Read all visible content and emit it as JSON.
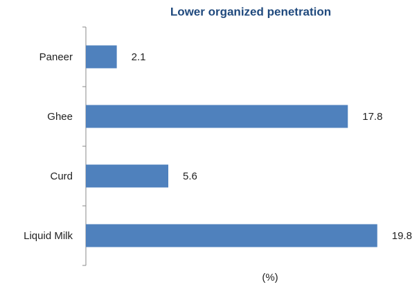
{
  "chart_data": {
    "type": "hbar",
    "title": "Lower organized penetration",
    "x_label": "(%)",
    "categories": [
      "Paneer",
      "Ghee",
      "Curd",
      "Liquid Milk"
    ],
    "values": [
      2.1,
      17.8,
      5.6,
      19.8
    ],
    "color": "#4f81bd",
    "xlim": [
      0,
      20
    ]
  }
}
